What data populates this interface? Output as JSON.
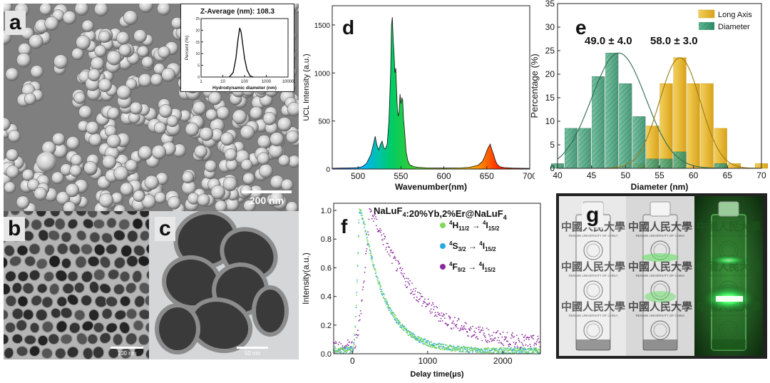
{
  "panels": {
    "a": {
      "label": "a",
      "scale_bar": "200 nm"
    },
    "b": {
      "label": "b",
      "scale_bar": "100 nm"
    },
    "c": {
      "label": "c",
      "scale_bar": "50 nm"
    },
    "d": {
      "label": "d"
    },
    "e": {
      "label": "e"
    },
    "f": {
      "label": "f"
    },
    "g": {
      "label": "g"
    }
  },
  "photo_text": {
    "logo": "中國人民大學",
    "university": "RENMIN UNIVERSITY OF CHINA"
  },
  "colors": {
    "long_axis": "#e8b830",
    "diameter": "#3e9a78",
    "h_series": "#7ed957",
    "s_series": "#27a8e0",
    "f_series": "#8a2a9c",
    "glow": "#33ff55"
  },
  "chart_data": [
    {
      "id": "inset-a",
      "type": "line",
      "title": "Z-Average (nm): 108.3",
      "xlabel": "Hydrodynamic diameter (nm)",
      "ylabel": "Percent (%)",
      "x_scale": "log",
      "xlim": [
        1,
        10000
      ],
      "ylim": [
        0,
        25
      ],
      "x_ticks": [
        "1",
        "10",
        "100",
        "1000",
        "10000"
      ],
      "y_ticks": [
        "0",
        "5",
        "10",
        "15",
        "20",
        "25"
      ],
      "peak_center": 60,
      "peak_height": 21,
      "series": [
        {
          "values_x": [
            20,
            30,
            40,
            50,
            60,
            70,
            80,
            100,
            130,
            180,
            250
          ],
          "values_y": [
            0,
            2,
            8,
            16,
            21,
            19,
            15,
            8,
            3,
            0.5,
            0
          ]
        }
      ]
    },
    {
      "id": "d",
      "type": "area",
      "title": "",
      "xlabel": "Wavenumber(nm)",
      "ylabel": "UCL Intensity (a.u.)",
      "xlim": [
        470,
        700
      ],
      "ylim": [
        0,
        1700
      ],
      "x_ticks": [
        "500",
        "550",
        "600",
        "650",
        "700"
      ],
      "y_ticks": [
        "0",
        "500",
        "1000",
        "1500"
      ],
      "x": [
        470,
        480,
        490,
        500,
        505,
        510,
        515,
        518,
        520,
        522,
        524,
        526,
        528,
        530,
        532,
        534,
        536,
        538,
        539,
        540,
        541,
        542,
        543,
        544,
        545,
        546,
        547,
        548,
        549,
        550,
        551,
        552,
        553,
        554,
        556,
        558,
        560,
        565,
        570,
        580,
        600,
        620,
        630,
        640,
        645,
        648,
        650,
        652,
        654,
        656,
        658,
        660,
        662,
        665,
        670,
        680,
        690,
        700
      ],
      "values": [
        8,
        10,
        12,
        15,
        25,
        60,
        150,
        260,
        340,
        250,
        200,
        250,
        290,
        220,
        210,
        260,
        500,
        1000,
        1500,
        1580,
        1350,
        1200,
        1000,
        1050,
        820,
        600,
        550,
        620,
        780,
        680,
        740,
        720,
        520,
        420,
        180,
        90,
        45,
        25,
        18,
        12,
        10,
        12,
        18,
        40,
        80,
        140,
        190,
        230,
        260,
        200,
        150,
        90,
        50,
        25,
        15,
        10,
        8,
        6
      ]
    },
    {
      "id": "e",
      "type": "bar",
      "title": "",
      "xlabel": "Diameter (nm)",
      "ylabel": "Percentage (%)",
      "xlim": [
        40,
        70
      ],
      "ylim": [
        0,
        35
      ],
      "x_ticks": [
        "40",
        "45",
        "50",
        "55",
        "60",
        "65",
        "70"
      ],
      "y_ticks": [
        "0",
        "5",
        "10",
        "15",
        "20",
        "25",
        "30",
        "35"
      ],
      "legend": "top-right",
      "annotations": [
        "49.0 ± 4.0",
        "58.0 ± 3.0"
      ],
      "series": [
        {
          "name": "Long Axis",
          "x": [
            52,
            54,
            56,
            58,
            60,
            62,
            64,
            66,
            68,
            70
          ],
          "values": [
            1,
            9,
            18,
            23.5,
            18,
            18,
            8.5,
            1,
            0,
            1
          ]
        },
        {
          "name": "Diameter",
          "x": [
            40,
            42,
            44,
            46,
            48,
            50,
            52,
            54,
            56,
            58,
            60,
            62,
            64
          ],
          "values": [
            1,
            8.5,
            8.5,
            19.5,
            24.5,
            18,
            11,
            2,
            2,
            3.5,
            0,
            0,
            1
          ]
        }
      ],
      "fits": [
        {
          "series": "Diameter",
          "mean": 49.0,
          "sd": 4.0,
          "peak": 24.5
        },
        {
          "series": "Long Axis",
          "mean": 58.0,
          "sd": 3.0,
          "peak": 23.5
        }
      ]
    },
    {
      "id": "f",
      "type": "scatter",
      "title": "NaLuF4:20%Yb,2%Er@NaLuF4",
      "xlabel": "Delay time(μs)",
      "ylabel": "Intensity(a.u.)",
      "xlim": [
        -250,
        2500
      ],
      "ylim": [
        0,
        1.05
      ],
      "x_ticks": [
        "0",
        "1000",
        "2000"
      ],
      "y_ticks": [
        "0.0",
        "0.2",
        "0.4",
        "0.6",
        "0.8",
        "1.0"
      ],
      "legend": "top-right",
      "series": [
        {
          "name": "4H11/2 → 4I15/2",
          "peak_time": 90,
          "rise": 45,
          "decay_tau": 300,
          "baseline": 0.02
        },
        {
          "name": "4S3/2 → 4I15/2",
          "peak_time": 90,
          "rise": 45,
          "decay_tau": 300,
          "baseline": 0.02
        },
        {
          "name": "4F9/2 → 4I15/2",
          "peak_time": 230,
          "rise": 85,
          "decay_tau": 610,
          "baseline": 0.05
        }
      ]
    }
  ]
}
